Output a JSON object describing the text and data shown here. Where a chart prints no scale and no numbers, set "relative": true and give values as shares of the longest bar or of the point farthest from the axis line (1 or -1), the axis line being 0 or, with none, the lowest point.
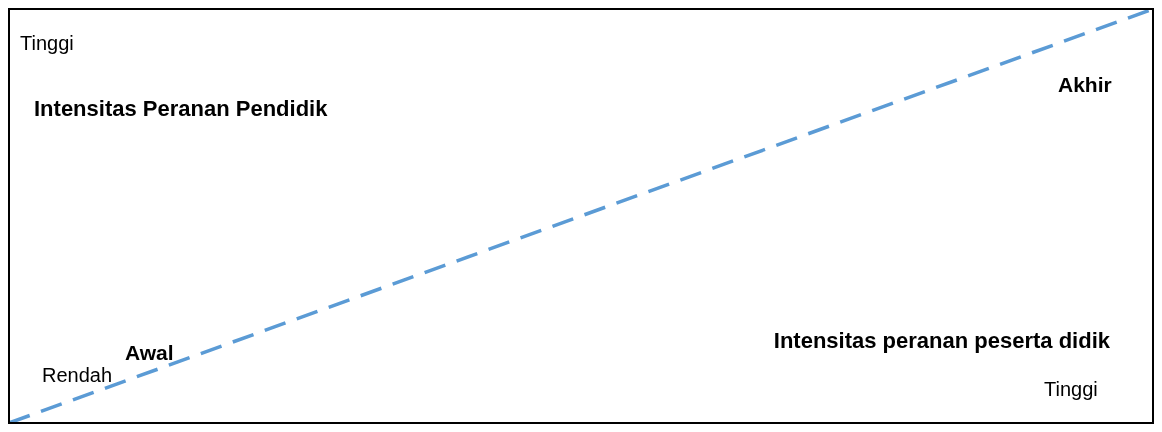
{
  "chart_data": {
    "type": "line",
    "relative": true,
    "categories": [
      null,
      null
    ],
    "series": [
      {
        "color": "#5b9bd5",
        "values": [
          0,
          1
        ]
      }
    ],
    "line_style": "dashed",
    "marker": "none",
    "legend": false,
    "xlabel": "Intensitas peranan peserta didik",
    "ylabel": "Intensitas Peranan Pendidik",
    "annotations": [
      "Tinggi",
      "Rendah",
      "Tinggi",
      "Awal",
      "Akhir"
    ]
  }
}
